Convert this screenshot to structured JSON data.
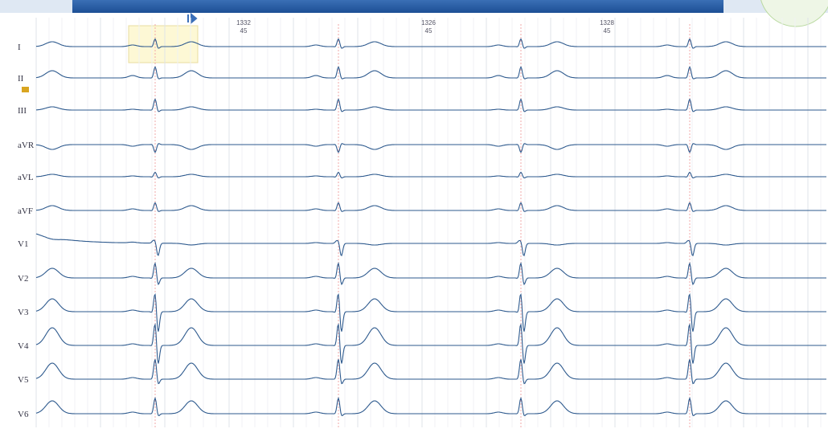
{
  "leads": [
    "I",
    "II",
    "III",
    "aVR",
    "aVL",
    "aVF",
    "V1",
    "V2",
    "V3",
    "V4",
    "V5",
    "V6"
  ],
  "intervals": [
    {
      "rr": "1332",
      "hr": "45"
    },
    {
      "rr": "1326",
      "hr": "45"
    },
    {
      "rr": "1328",
      "hr": "45"
    }
  ]
}
